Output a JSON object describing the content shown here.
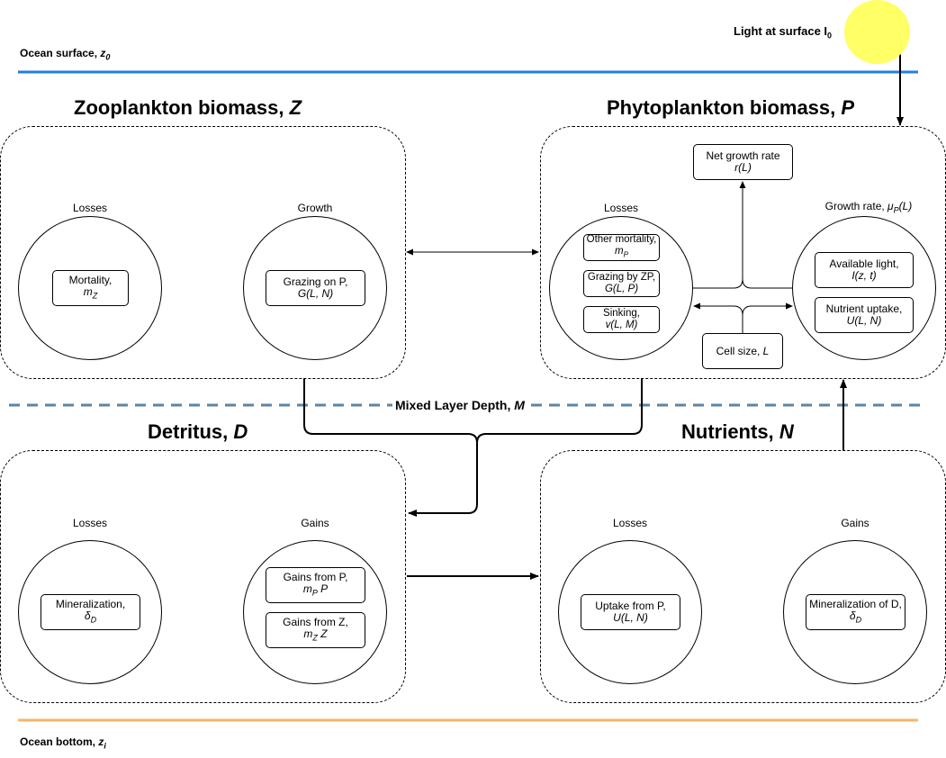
{
  "header": {
    "ocean_surface": "Ocean surface,",
    "ocean_surface_var": "z",
    "ocean_surface_sub": "0",
    "light_label": "Light at surface I",
    "light_sub": "0"
  },
  "footer": {
    "ocean_bottom": "Ocean bottom,",
    "ocean_bottom_var": "z",
    "ocean_bottom_sub": "i"
  },
  "mixed_layer": {
    "label": "Mixed Layer Depth,",
    "var": "M"
  },
  "zooplankton": {
    "title": "Zooplankton biomass,",
    "var": "Z",
    "losses_label": "Losses",
    "growth_label": "Growth",
    "mortality": [
      "Mortality,",
      "m",
      "Z"
    ],
    "grazing": [
      "Grazing on P,",
      "G(L, N)"
    ]
  },
  "phytoplankton": {
    "title": "Phytoplankton biomass,",
    "var": "P",
    "losses_label": "Losses",
    "growth_label": "Growth rate,",
    "growth_mu": "μ",
    "growth_mu_sub": "P",
    "growth_arg": "(L)",
    "other_mortality": [
      "Other mortality,",
      "m",
      "P"
    ],
    "grazing_by_zp": [
      "Grazing by ZP,",
      "G(L, P)"
    ],
    "sinking": [
      "Sinking,",
      "v(L, M)"
    ],
    "net_growth": [
      "Net growth rate",
      "r(L)"
    ],
    "available_light": [
      "Available light,",
      "I(z, t)"
    ],
    "nutrient_uptake": [
      "Nutrient uptake,",
      "U(L, N)"
    ],
    "cell_size": [
      "Cell size,",
      "L"
    ]
  },
  "detritus": {
    "title": "Detritus,",
    "var": "D",
    "losses_label": "Losses",
    "gains_label": "Gains",
    "mineralization": [
      "Mineralization,",
      "δ",
      "D"
    ],
    "gains_p": [
      "Gains from P,",
      "m",
      "P",
      "P"
    ],
    "gains_z": [
      "Gains from Z,",
      "m",
      "Z",
      "Z"
    ]
  },
  "nutrients": {
    "title": "Nutrients,",
    "var": "N",
    "losses_label": "Losses",
    "gains_label": "Gains",
    "uptake": [
      "Uptake from P,",
      "U(L, N)"
    ],
    "mineralization_d": [
      "Mineralization of D,",
      "δ",
      "D"
    ]
  },
  "colors": {
    "surface_line": "#1f7fe0",
    "bottom_line": "#f7b469",
    "mixed_layer_line": "#5c84a6",
    "sun": "#ffff66"
  }
}
